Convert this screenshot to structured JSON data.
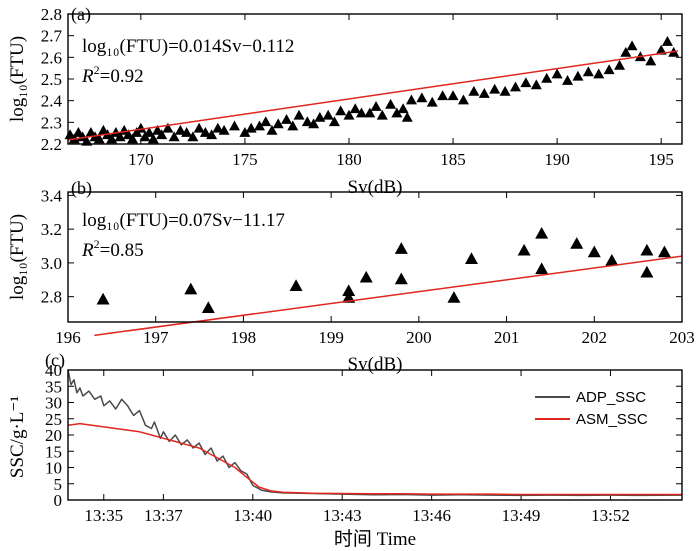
{
  "colors": {
    "marker": "#000000",
    "fit_line": "#e0261f",
    "adp_line": "#4a4a4a",
    "asm_line": "#e0261f"
  },
  "chart_data": [
    {
      "panel": "(a)",
      "type": "scatter",
      "xlabel": "Sv(dB)",
      "ylabel": "log₁₀(FTU)",
      "xlim": [
        166.5,
        196.0
      ],
      "ylim": [
        2.2,
        2.8
      ],
      "xticks": [
        "170",
        "175",
        "180",
        "185",
        "190",
        "195"
      ],
      "yticks": [
        "2.2",
        "2.3",
        "2.4",
        "2.5",
        "2.6",
        "2.7",
        "2.8"
      ],
      "equation": "log₁₀(FTU)=0.014Sv−0.112",
      "r2": "=0.92",
      "fit": {
        "slope": 0.014,
        "intercept": -0.112,
        "x": [
          166.5,
          195.8
        ]
      },
      "points": [
        [
          166.6,
          2.24
        ],
        [
          166.8,
          2.22
        ],
        [
          167.0,
          2.25
        ],
        [
          167.2,
          2.23
        ],
        [
          167.4,
          2.21
        ],
        [
          167.6,
          2.25
        ],
        [
          167.8,
          2.23
        ],
        [
          168.0,
          2.22
        ],
        [
          168.2,
          2.26
        ],
        [
          168.4,
          2.24
        ],
        [
          168.6,
          2.22
        ],
        [
          168.8,
          2.25
        ],
        [
          169.0,
          2.23
        ],
        [
          169.2,
          2.26
        ],
        [
          169.4,
          2.24
        ],
        [
          169.6,
          2.22
        ],
        [
          169.8,
          2.25
        ],
        [
          170.0,
          2.27
        ],
        [
          170.2,
          2.23
        ],
        [
          170.4,
          2.25
        ],
        [
          170.6,
          2.22
        ],
        [
          170.8,
          2.26
        ],
        [
          171.0,
          2.24
        ],
        [
          171.3,
          2.27
        ],
        [
          171.6,
          2.23
        ],
        [
          171.9,
          2.26
        ],
        [
          172.2,
          2.25
        ],
        [
          172.5,
          2.23
        ],
        [
          172.8,
          2.27
        ],
        [
          173.1,
          2.25
        ],
        [
          173.4,
          2.24
        ],
        [
          173.7,
          2.27
        ],
        [
          174.0,
          2.26
        ],
        [
          174.5,
          2.28
        ],
        [
          175.0,
          2.25
        ],
        [
          175.3,
          2.27
        ],
        [
          175.7,
          2.28
        ],
        [
          176.0,
          2.3
        ],
        [
          176.3,
          2.26
        ],
        [
          176.6,
          2.29
        ],
        [
          177.0,
          2.31
        ],
        [
          177.3,
          2.28
        ],
        [
          177.6,
          2.33
        ],
        [
          178.0,
          2.3
        ],
        [
          178.3,
          2.29
        ],
        [
          178.6,
          2.32
        ],
        [
          179.0,
          2.33
        ],
        [
          179.3,
          2.3
        ],
        [
          179.6,
          2.35
        ],
        [
          180.0,
          2.33
        ],
        [
          180.3,
          2.36
        ],
        [
          180.6,
          2.34
        ],
        [
          181.0,
          2.34
        ],
        [
          181.3,
          2.37
        ],
        [
          181.6,
          2.33
        ],
        [
          182.0,
          2.38
        ],
        [
          182.3,
          2.34
        ],
        [
          182.6,
          2.36
        ],
        [
          182.8,
          2.32
        ],
        [
          183.0,
          2.4
        ],
        [
          183.5,
          2.41
        ],
        [
          184.0,
          2.39
        ],
        [
          184.5,
          2.42
        ],
        [
          185.0,
          2.42
        ],
        [
          185.5,
          2.4
        ],
        [
          186.0,
          2.44
        ],
        [
          186.5,
          2.43
        ],
        [
          187.0,
          2.45
        ],
        [
          187.5,
          2.44
        ],
        [
          188.0,
          2.46
        ],
        [
          188.5,
          2.48
        ],
        [
          189.0,
          2.47
        ],
        [
          189.5,
          2.5
        ],
        [
          190.0,
          2.52
        ],
        [
          190.5,
          2.49
        ],
        [
          191.0,
          2.51
        ],
        [
          191.5,
          2.53
        ],
        [
          192.0,
          2.52
        ],
        [
          192.5,
          2.54
        ],
        [
          193.0,
          2.56
        ],
        [
          193.3,
          2.62
        ],
        [
          193.6,
          2.65
        ],
        [
          194.0,
          2.6
        ],
        [
          194.5,
          2.58
        ],
        [
          195.0,
          2.63
        ],
        [
          195.3,
          2.67
        ],
        [
          195.6,
          2.62
        ]
      ]
    },
    {
      "panel": "(b)",
      "type": "scatter",
      "xlabel": "Sv(dB)",
      "ylabel": "log₁₀(FTU)",
      "xlim": [
        196,
        203
      ],
      "ylim": [
        2.65,
        3.42
      ],
      "xticks": [
        "196",
        "197",
        "198",
        "199",
        "200",
        "201",
        "202",
        "203"
      ],
      "yticks": [
        "2.8",
        "3.0",
        "3.2",
        "3.4"
      ],
      "equation": "log₁₀(FTU)=0.07Sv−11.17",
      "r2": "=0.85",
      "fit": {
        "slope": 0.07,
        "intercept": -11.17,
        "x": [
          196.3,
          203.0
        ]
      },
      "points": [
        [
          196.4,
          2.78
        ],
        [
          197.4,
          2.84
        ],
        [
          197.6,
          2.73
        ],
        [
          198.6,
          2.86
        ],
        [
          199.2,
          2.83
        ],
        [
          199.2,
          2.79
        ],
        [
          199.4,
          2.91
        ],
        [
          199.8,
          3.08
        ],
        [
          199.8,
          2.9
        ],
        [
          200.4,
          2.79
        ],
        [
          200.6,
          3.02
        ],
        [
          201.2,
          3.07
        ],
        [
          201.4,
          3.17
        ],
        [
          201.4,
          2.96
        ],
        [
          201.8,
          3.11
        ],
        [
          202.0,
          3.06
        ],
        [
          202.2,
          3.01
        ],
        [
          202.6,
          3.07
        ],
        [
          202.6,
          2.94
        ],
        [
          202.8,
          3.06
        ]
      ]
    },
    {
      "panel": "(c)",
      "type": "line",
      "xlabel": "时间 Time",
      "ylabel": "SSC/g·L⁻¹",
      "xlim_minutes": [
        813.8,
        834.4
      ],
      "ylim": [
        0,
        40
      ],
      "xticks": [
        "13:35",
        "13:37",
        "13:40",
        "13:43",
        "13:46",
        "13:49",
        "13:52"
      ],
      "xtick_minutes": [
        815,
        817,
        820,
        823,
        826,
        829,
        832
      ],
      "yticks": [
        "0",
        "5",
        "10",
        "15",
        "20",
        "25",
        "30",
        "35",
        "40"
      ],
      "legend": "top-right",
      "series": [
        {
          "name": "ADP_SSC",
          "points": [
            [
              813.8,
              40.0
            ],
            [
              813.9,
              35.5
            ],
            [
              814.0,
              37.0
            ],
            [
              814.1,
              33.0
            ],
            [
              814.2,
              34.5
            ],
            [
              814.3,
              32.0
            ],
            [
              814.5,
              33.5
            ],
            [
              814.7,
              31.0
            ],
            [
              814.9,
              32.0
            ],
            [
              815.0,
              29.0
            ],
            [
              815.2,
              30.5
            ],
            [
              815.4,
              28.0
            ],
            [
              815.6,
              31.0
            ],
            [
              815.8,
              29.0
            ],
            [
              816.0,
              26.0
            ],
            [
              816.2,
              27.5
            ],
            [
              816.4,
              23.0
            ],
            [
              816.6,
              22.0
            ],
            [
              816.7,
              24.0
            ],
            [
              816.9,
              19.0
            ],
            [
              817.0,
              21.0
            ],
            [
              817.2,
              18.0
            ],
            [
              817.4,
              20.0
            ],
            [
              817.6,
              17.0
            ],
            [
              817.8,
              18.5
            ],
            [
              818.0,
              16.0
            ],
            [
              818.2,
              17.5
            ],
            [
              818.4,
              14.0
            ],
            [
              818.6,
              16.0
            ],
            [
              818.8,
              12.0
            ],
            [
              819.0,
              13.5
            ],
            [
              819.2,
              10.0
            ],
            [
              819.4,
              11.5
            ],
            [
              819.6,
              9.0
            ],
            [
              819.8,
              8.0
            ],
            [
              820.0,
              4.5
            ],
            [
              820.3,
              3.0
            ],
            [
              820.6,
              2.5
            ],
            [
              821.0,
              2.2
            ],
            [
              822.0,
              2.0
            ],
            [
              823.0,
              1.8
            ],
            [
              824.0,
              1.6
            ],
            [
              825.0,
              1.7
            ],
            [
              826.0,
              1.5
            ],
            [
              827.0,
              1.6
            ],
            [
              828.0,
              1.5
            ],
            [
              829.0,
              1.4
            ],
            [
              830.0,
              1.5
            ],
            [
              831.0,
              1.4
            ],
            [
              832.0,
              1.5
            ],
            [
              833.0,
              1.4
            ],
            [
              834.4,
              1.5
            ]
          ]
        },
        {
          "name": "ASM_SSC",
          "points": [
            [
              813.8,
              23.0
            ],
            [
              814.2,
              23.5
            ],
            [
              814.6,
              23.0
            ],
            [
              815.0,
              22.5
            ],
            [
              815.4,
              22.0
            ],
            [
              815.8,
              21.5
            ],
            [
              816.2,
              21.0
            ],
            [
              816.6,
              20.0
            ],
            [
              817.0,
              19.0
            ],
            [
              817.4,
              18.0
            ],
            [
              817.8,
              17.0
            ],
            [
              818.2,
              16.0
            ],
            [
              818.6,
              14.0
            ],
            [
              819.0,
              12.0
            ],
            [
              819.4,
              10.0
            ],
            [
              819.8,
              7.0
            ],
            [
              820.2,
              4.0
            ],
            [
              820.6,
              2.8
            ],
            [
              821.0,
              2.4
            ],
            [
              822.0,
              2.1
            ],
            [
              823.0,
              2.0
            ],
            [
              824.0,
              1.9
            ],
            [
              825.0,
              1.9
            ],
            [
              826.0,
              1.8
            ],
            [
              827.0,
              1.8
            ],
            [
              828.0,
              1.8
            ],
            [
              829.0,
              1.7
            ],
            [
              830.0,
              1.7
            ],
            [
              831.0,
              1.7
            ],
            [
              832.0,
              1.7
            ],
            [
              833.0,
              1.7
            ],
            [
              834.4,
              1.7
            ]
          ]
        }
      ]
    }
  ]
}
